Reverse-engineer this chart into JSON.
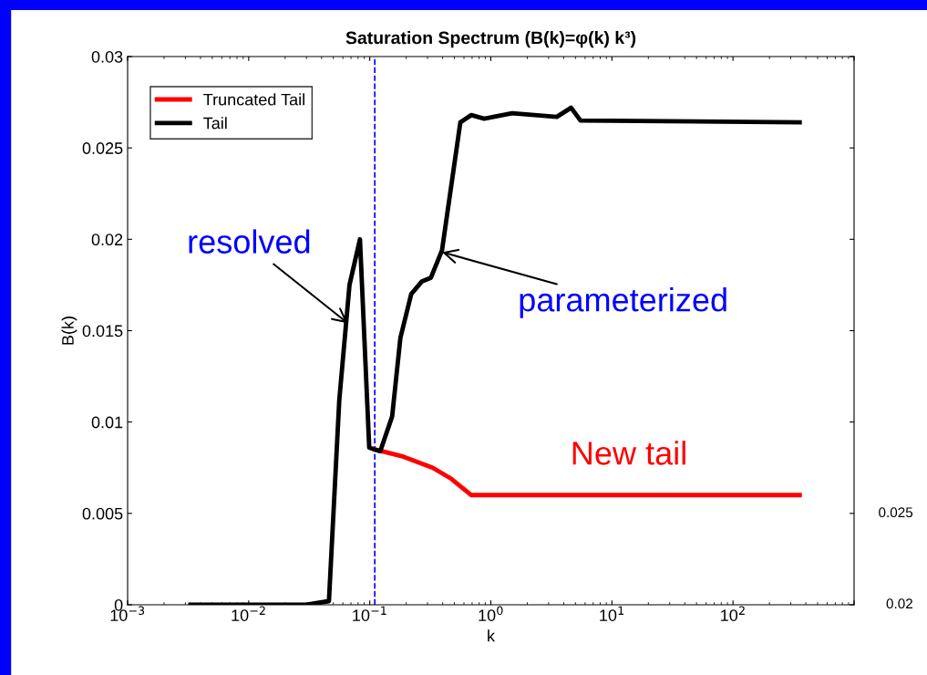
{
  "chart_data": {
    "type": "line",
    "title": "Saturation Spectrum (B(k)=φ(k) k³)",
    "xlabel": "k",
    "ylabel": "B(k)",
    "log": "x",
    "xlim": [
      0.001,
      1000
    ],
    "ylim": [
      0,
      0.03
    ],
    "xticks": [
      {
        "value": 0.001,
        "label": "10$^{−3}$"
      },
      {
        "value": 0.01,
        "label": "10$^{−2}$"
      },
      {
        "value": 0.1,
        "label": "10$^{−1}$"
      },
      {
        "value": 1,
        "label": "10$^{0}$"
      },
      {
        "value": 10,
        "label": "10$^{1}$"
      },
      {
        "value": 100,
        "label": "10$^{2}$"
      },
      {
        "value": 1000,
        "label": null
      }
    ],
    "yticks": [
      0,
      0.005,
      0.01,
      0.015,
      0.02,
      0.025,
      0.03
    ],
    "grid": false,
    "legend": "top left",
    "line_style": "solid",
    "marker": "none",
    "series": [
      {
        "name": "Truncated Tail",
        "color": "#ff0000",
        "x": [
          0.11,
          0.19,
          0.33,
          0.47,
          0.69,
          355
        ],
        "values": [
          0.0085,
          0.0081,
          0.0075,
          0.0069,
          0.006,
          0.006
        ]
      },
      {
        "name": "Tail",
        "color": "#000000",
        "x": [
          0.0033,
          0.03,
          0.046,
          0.056,
          0.068,
          0.083,
          0.099,
          0.122,
          0.153,
          0.179,
          0.22,
          0.27,
          0.32,
          0.395,
          0.56,
          0.69,
          0.88,
          1.5,
          3.5,
          4.6,
          5.5,
          355
        ],
        "values": [
          0,
          0,
          0.0002,
          0.0112,
          0.0175,
          0.02,
          0.0086,
          0.0084,
          0.0103,
          0.0146,
          0.017,
          0.0177,
          0.0179,
          0.0194,
          0.0264,
          0.0268,
          0.0266,
          0.0269,
          0.0267,
          0.0272,
          0.0265,
          0.0264
        ]
      }
    ],
    "ref_lines": [
      {
        "axis": "x",
        "value": 0.11,
        "color": "#0000ff",
        "line_style": "dashed"
      }
    ],
    "annotations": [
      {
        "text": "resolved",
        "x": 0.066,
        "y": 0.0154
      },
      {
        "text": "parameterized",
        "x": 0.395,
        "y": 0.0193
      },
      "New tail",
      "0.025",
      "0.02"
    ]
  }
}
